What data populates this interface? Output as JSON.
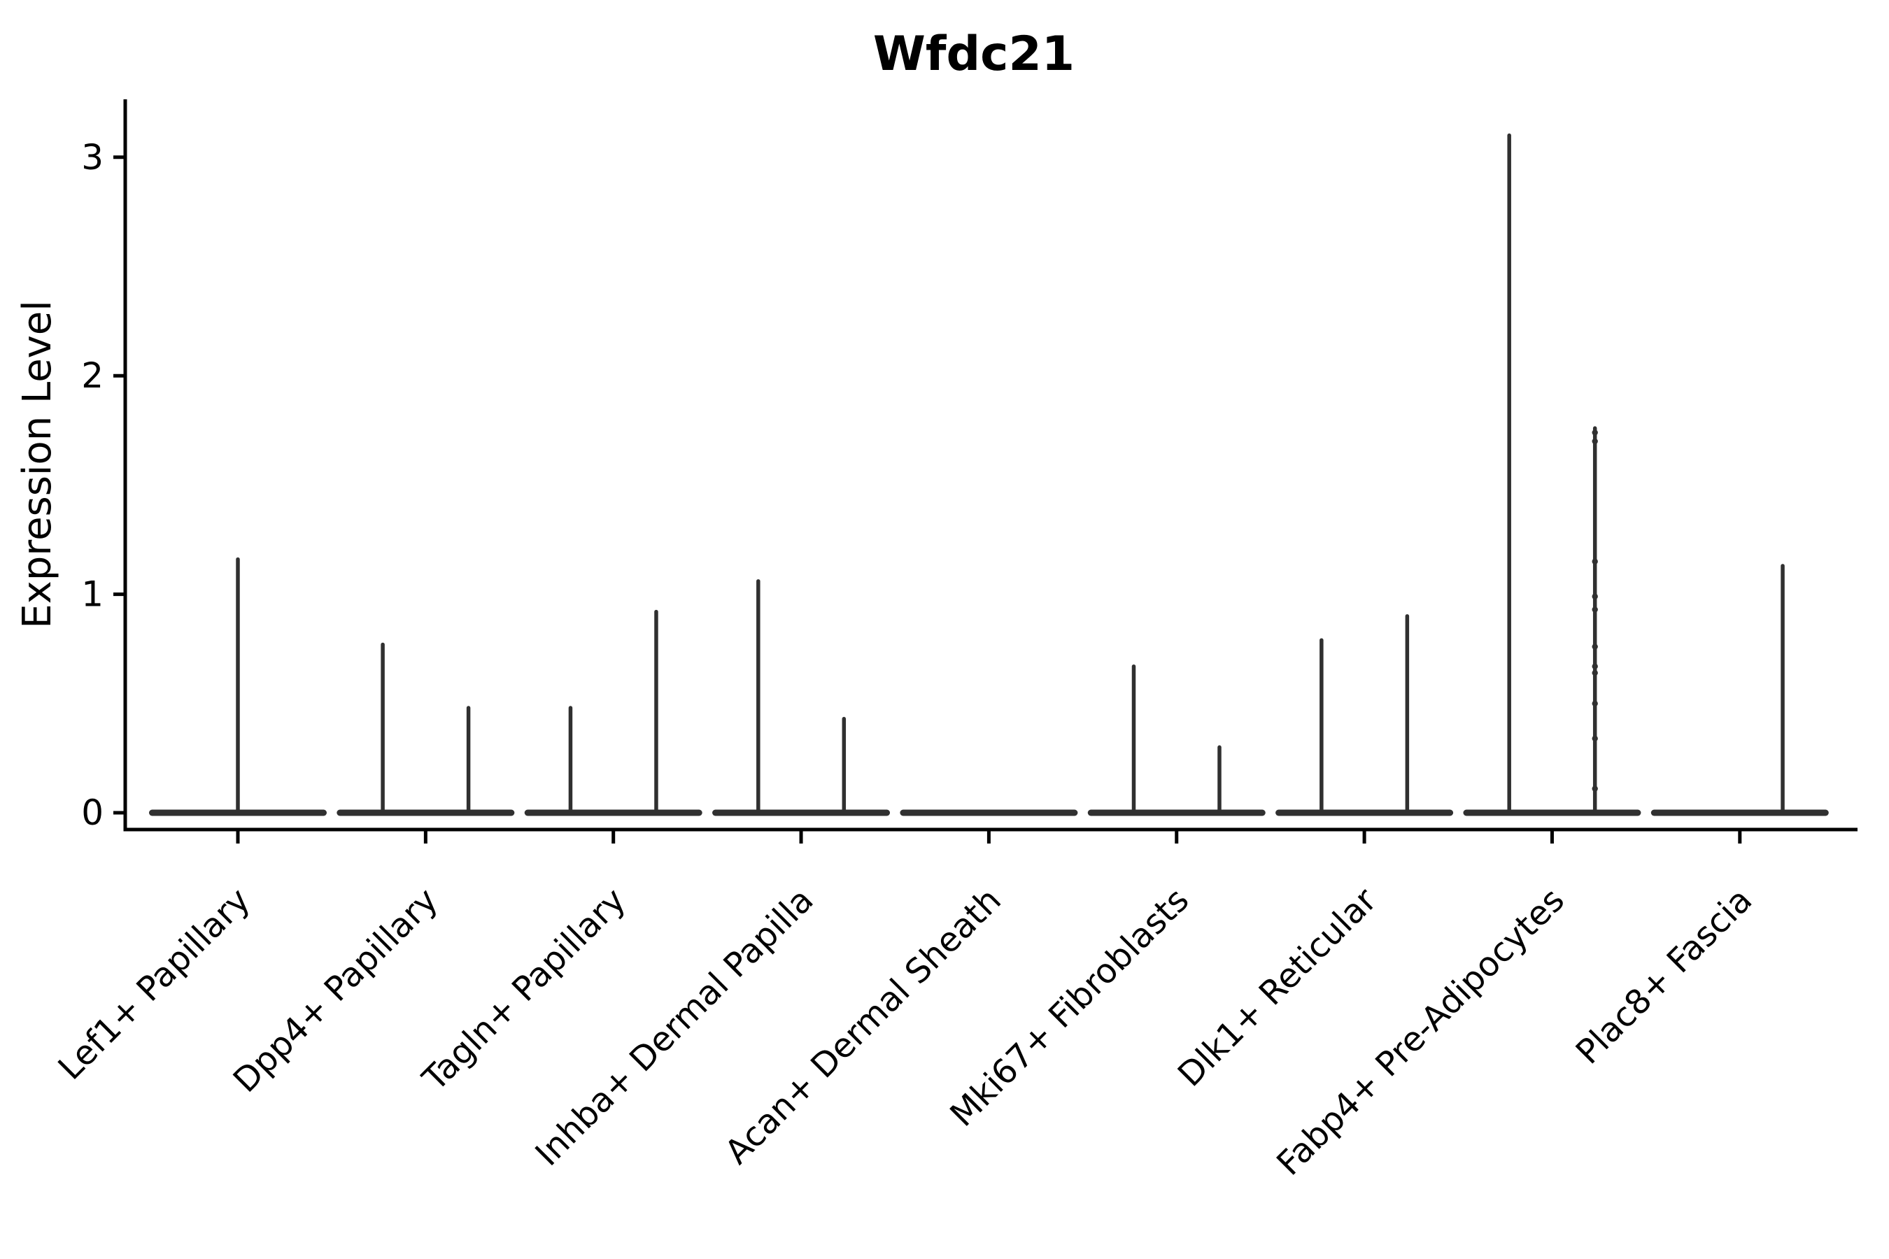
{
  "figure": {
    "title": "Wfdc21",
    "ylabel": "Expression Level"
  },
  "colors": {
    "violin": "#303030",
    "axis": "#000000",
    "text": "#000000",
    "background": "#ffffff"
  },
  "chart_data": {
    "type": "violin",
    "title": "Wfdc21",
    "xlabel": "",
    "ylabel": "Expression Level",
    "ylim": [
      -0.08,
      3.27
    ],
    "yticks": [
      0,
      1,
      2,
      3
    ],
    "grid": false,
    "legend": "none",
    "description": "Needle-thin violins: wide flat base at expression 0, narrow spike up to max expression. Categories may hold two half-width violins (left/right) whose bases merge.",
    "categories": [
      "Lef1+ Papillary",
      "Dpp4+ Papillary",
      "Tagln+ Papillary",
      "Inhba+ Dermal Papilla",
      "Acan+ Dermal Sheath",
      "Mki67+ Fibroblasts",
      "Dlk1+ Reticular",
      "Fabp4+ Pre-Adipocytes",
      "Plac8+ Fascia"
    ],
    "series": [
      {
        "category": "Lef1+ Papillary",
        "violins": [
          {
            "position": "center",
            "max_expression": 1.16
          }
        ]
      },
      {
        "category": "Dpp4+ Papillary",
        "violins": [
          {
            "position": "left",
            "max_expression": 0.77
          },
          {
            "position": "right",
            "max_expression": 0.48
          }
        ]
      },
      {
        "category": "Tagln+ Papillary",
        "violins": [
          {
            "position": "left",
            "max_expression": 0.48
          },
          {
            "position": "right",
            "max_expression": 0.92
          }
        ]
      },
      {
        "category": "Inhba+ Dermal Papilla",
        "violins": [
          {
            "position": "left",
            "max_expression": 1.06
          },
          {
            "position": "right",
            "max_expression": 0.43
          }
        ]
      },
      {
        "category": "Acan+ Dermal Sheath",
        "violins": []
      },
      {
        "category": "Mki67+ Fibroblasts",
        "violins": [
          {
            "position": "left",
            "max_expression": 0.67
          },
          {
            "position": "right",
            "max_expression": 0.3
          }
        ]
      },
      {
        "category": "Dlk1+ Reticular",
        "violins": [
          {
            "position": "left",
            "max_expression": 0.79
          },
          {
            "position": "right",
            "max_expression": 0.9
          }
        ]
      },
      {
        "category": "Fabp4+ Pre-Adipocytes",
        "violins": [
          {
            "position": "left",
            "max_expression": 3.1
          },
          {
            "position": "right",
            "max_expression": 1.76,
            "points": [
              1.74,
              1.7,
              1.15,
              0.99,
              0.93,
              0.76,
              0.67,
              0.64,
              0.5,
              0.34,
              0.11
            ]
          }
        ]
      },
      {
        "category": "Plac8+ Fascia",
        "violins": [
          {
            "position": "right",
            "max_expression": 1.13
          }
        ]
      }
    ]
  }
}
